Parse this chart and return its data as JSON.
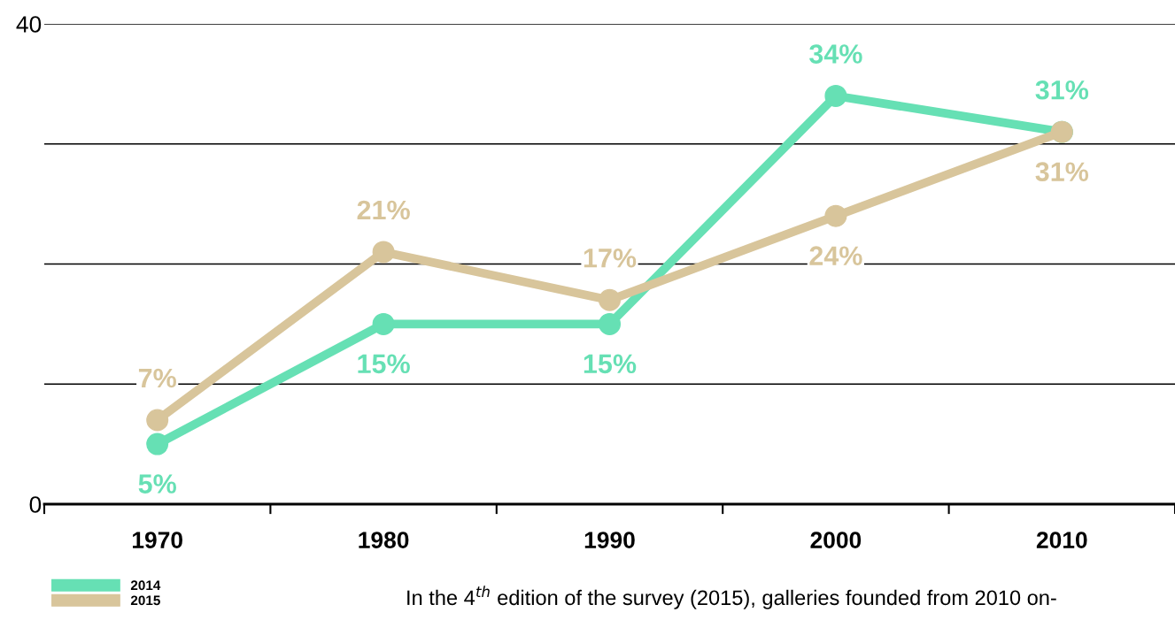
{
  "chart_data": {
    "type": "line",
    "categories": [
      "1970",
      "1980",
      "1990",
      "2000",
      "2010"
    ],
    "series": [
      {
        "name": "2014",
        "color": "#66e0b4",
        "values": [
          5,
          15,
          15,
          34,
          31
        ],
        "value_labels": [
          "5%",
          "15%",
          "15%",
          "34%",
          "31%"
        ]
      },
      {
        "name": "2015",
        "color": "#d8c59b",
        "values": [
          7,
          21,
          17,
          24,
          31
        ],
        "value_labels": [
          "7%",
          "21%",
          "17%",
          "24%",
          "31%"
        ]
      }
    ],
    "ylim": [
      0,
      40
    ],
    "yticks": [
      0,
      {
        "value": 10,
        "label": null
      },
      {
        "value": 20,
        "label": null
      },
      {
        "value": 30,
        "label": null
      },
      40
    ],
    "grid": "y",
    "legend": "bottom left",
    "marker": "circle",
    "line_style": "solid",
    "annotations": [
      "In the 4$^{th}$ edition of the survey (2015), galleries founded from 2010 on-"
    ]
  }
}
